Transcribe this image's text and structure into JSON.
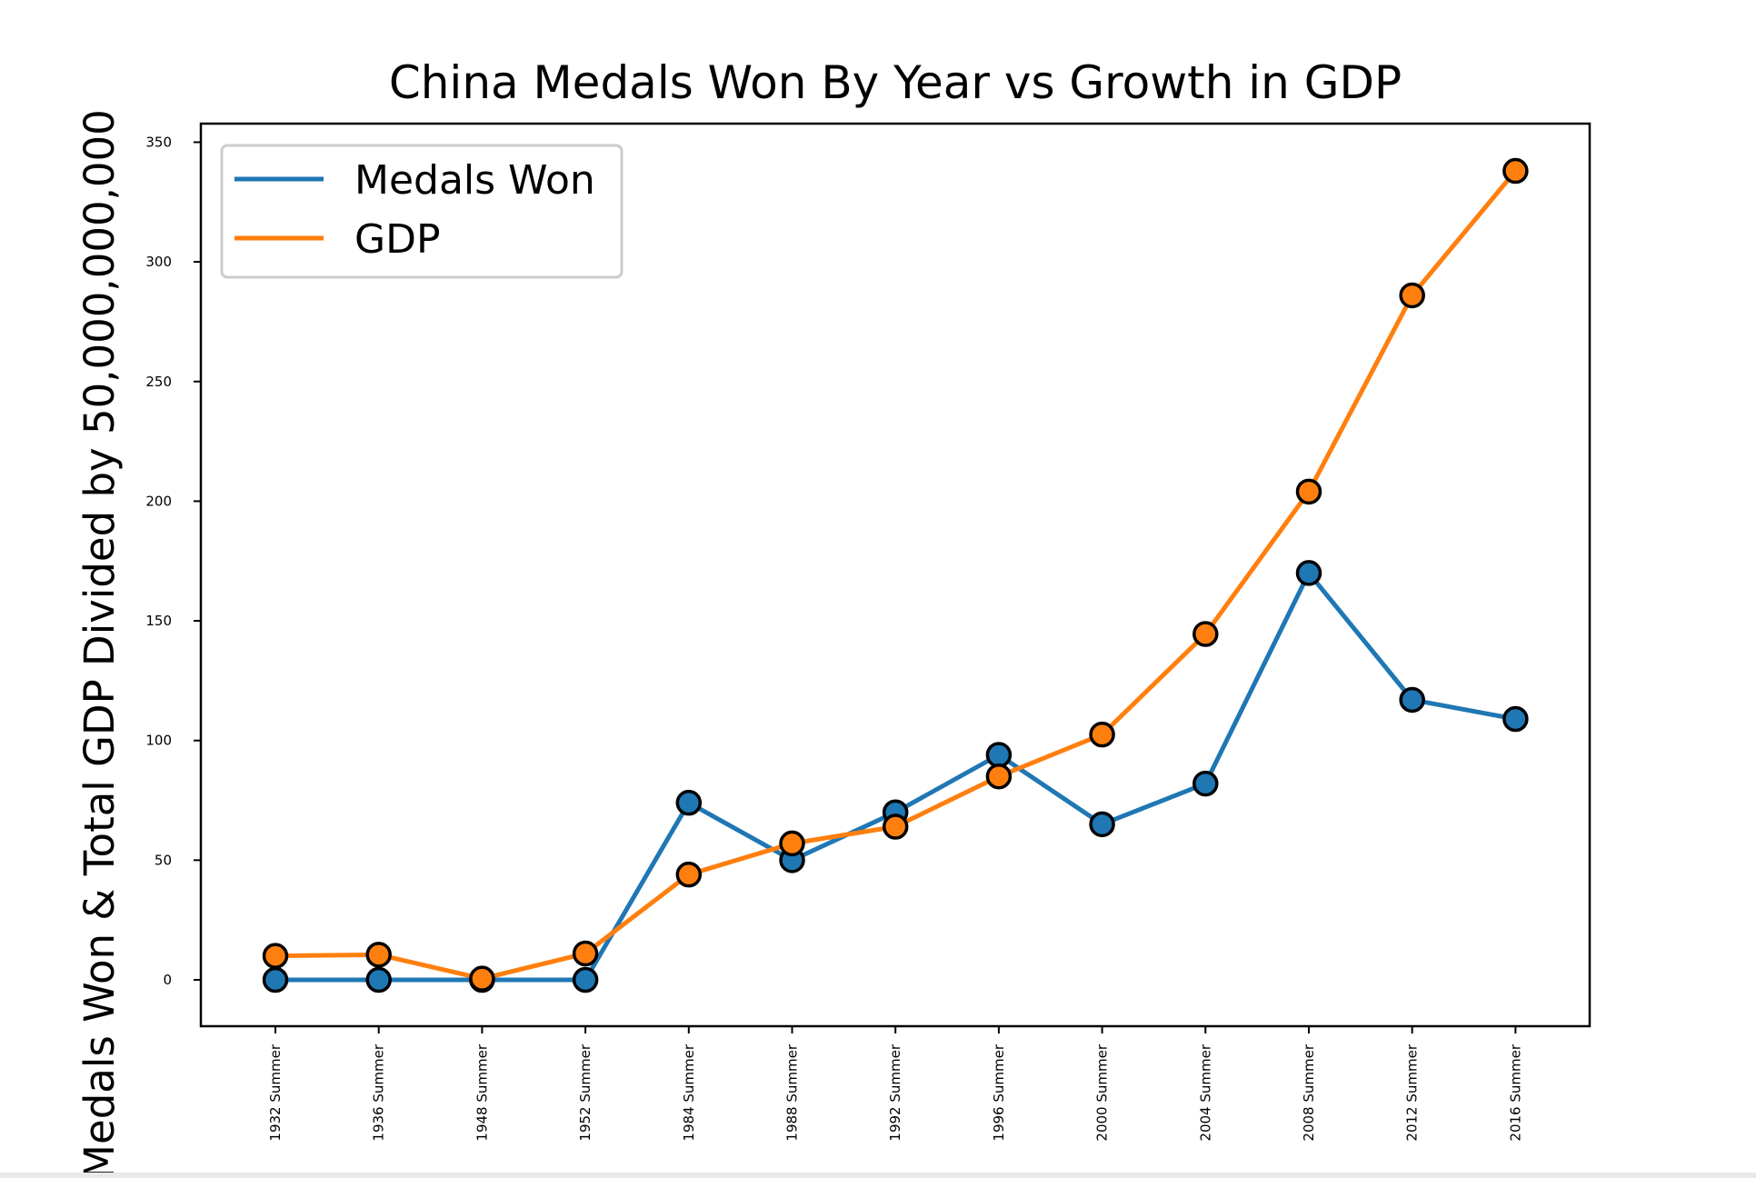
{
  "chart_data": {
    "type": "line",
    "title": "China Medals Won By Year vs Growth in GDP",
    "xlabel": "",
    "ylabel": "Medals Won & Total GDP Divided by 50,000,000,000",
    "categories": [
      "1932 Summer",
      "1936 Summer",
      "1948 Summer",
      "1952 Summer",
      "1984 Summer",
      "1988 Summer",
      "1992 Summer",
      "1996 Summer",
      "2000 Summer",
      "2004 Summer",
      "2008 Summer",
      "2012 Summer",
      "2016 Summer"
    ],
    "series": [
      {
        "name": "Medals Won",
        "color": "#1f77b4",
        "values": [
          0,
          0,
          0,
          0,
          74,
          50,
          70,
          94,
          65,
          82,
          170,
          117,
          109
        ]
      },
      {
        "name": "GDP",
        "color": "#ff7f0e",
        "values": [
          10,
          10.5,
          0.5,
          11,
          44,
          57,
          64,
          85,
          102.5,
          144.5,
          204,
          286,
          338
        ]
      }
    ],
    "ylim": [
      -20,
      358
    ],
    "yticks": [
      0,
      50,
      100,
      150,
      200,
      250,
      300,
      350
    ],
    "legend": "top-left",
    "grid": false
  }
}
